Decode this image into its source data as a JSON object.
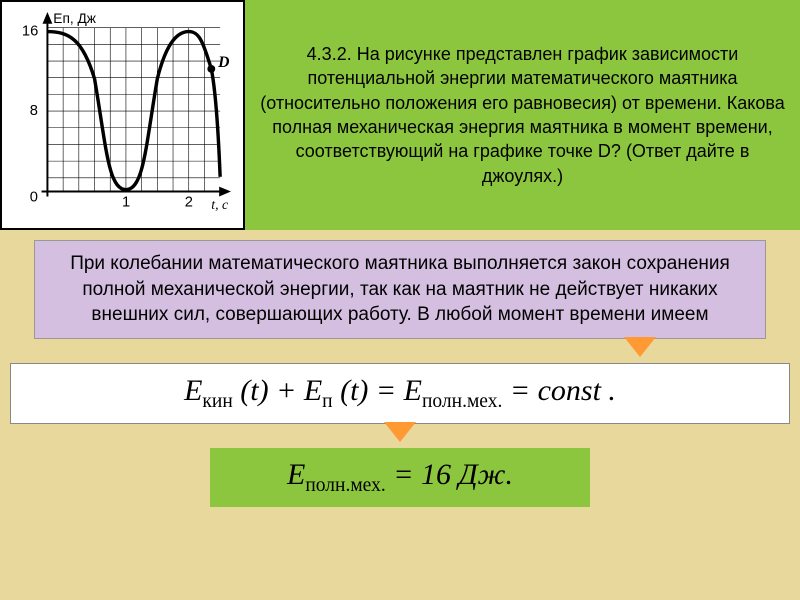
{
  "chart": {
    "type": "line",
    "y_label": "Eп, Дж",
    "x_label": "t, с",
    "y_ticks": [
      0,
      8,
      16
    ],
    "x_ticks": [
      0,
      1,
      2
    ],
    "ylim": [
      0,
      17
    ],
    "xlim": [
      0,
      2.5
    ],
    "grid_cells_x": 11,
    "grid_cells_y": 10,
    "point_label": "D",
    "point_x": 2.15,
    "point_y": 12,
    "curve_description": "cosine-like wave, max 16, min 0, period ~1.8",
    "background_color": "#ffffff",
    "border_color": "#000000",
    "grid_color": "#000000",
    "curve_color": "#000000",
    "curve_width": 3,
    "label_fontsize": 12
  },
  "problem": {
    "number": "4.3.2.",
    "text": "На рисунке представлен график зависимости потенциальной энергии математического маятника (относительно положения его равновесия) от времени. Какова полная механическая энергия маятника в момент времени, соответствующий на графике точке D? (Ответ дайте в джоулях.)"
  },
  "solution": {
    "text": "При колебании математического маятника выполняется закон сохранения полной механической энергии, так как на маятник не действует никаких внешних сил, совершающих работу. В любой момент времени имеем"
  },
  "formula1": {
    "text_html": "E<span class='sub'>кин</span> (t) + E<span class='sub'>п</span> (t) = E<span class='sub'>полн.мех.</span> = const ."
  },
  "formula2": {
    "text_html": "E<span class='sub'>полн.мех.</span> = 16 Дж."
  },
  "colors": {
    "page_bg": "#e8d89c",
    "green_box": "#8cc63f",
    "purple_box": "#d4bfe0",
    "arrow": "#ff9933",
    "white": "#ffffff"
  }
}
